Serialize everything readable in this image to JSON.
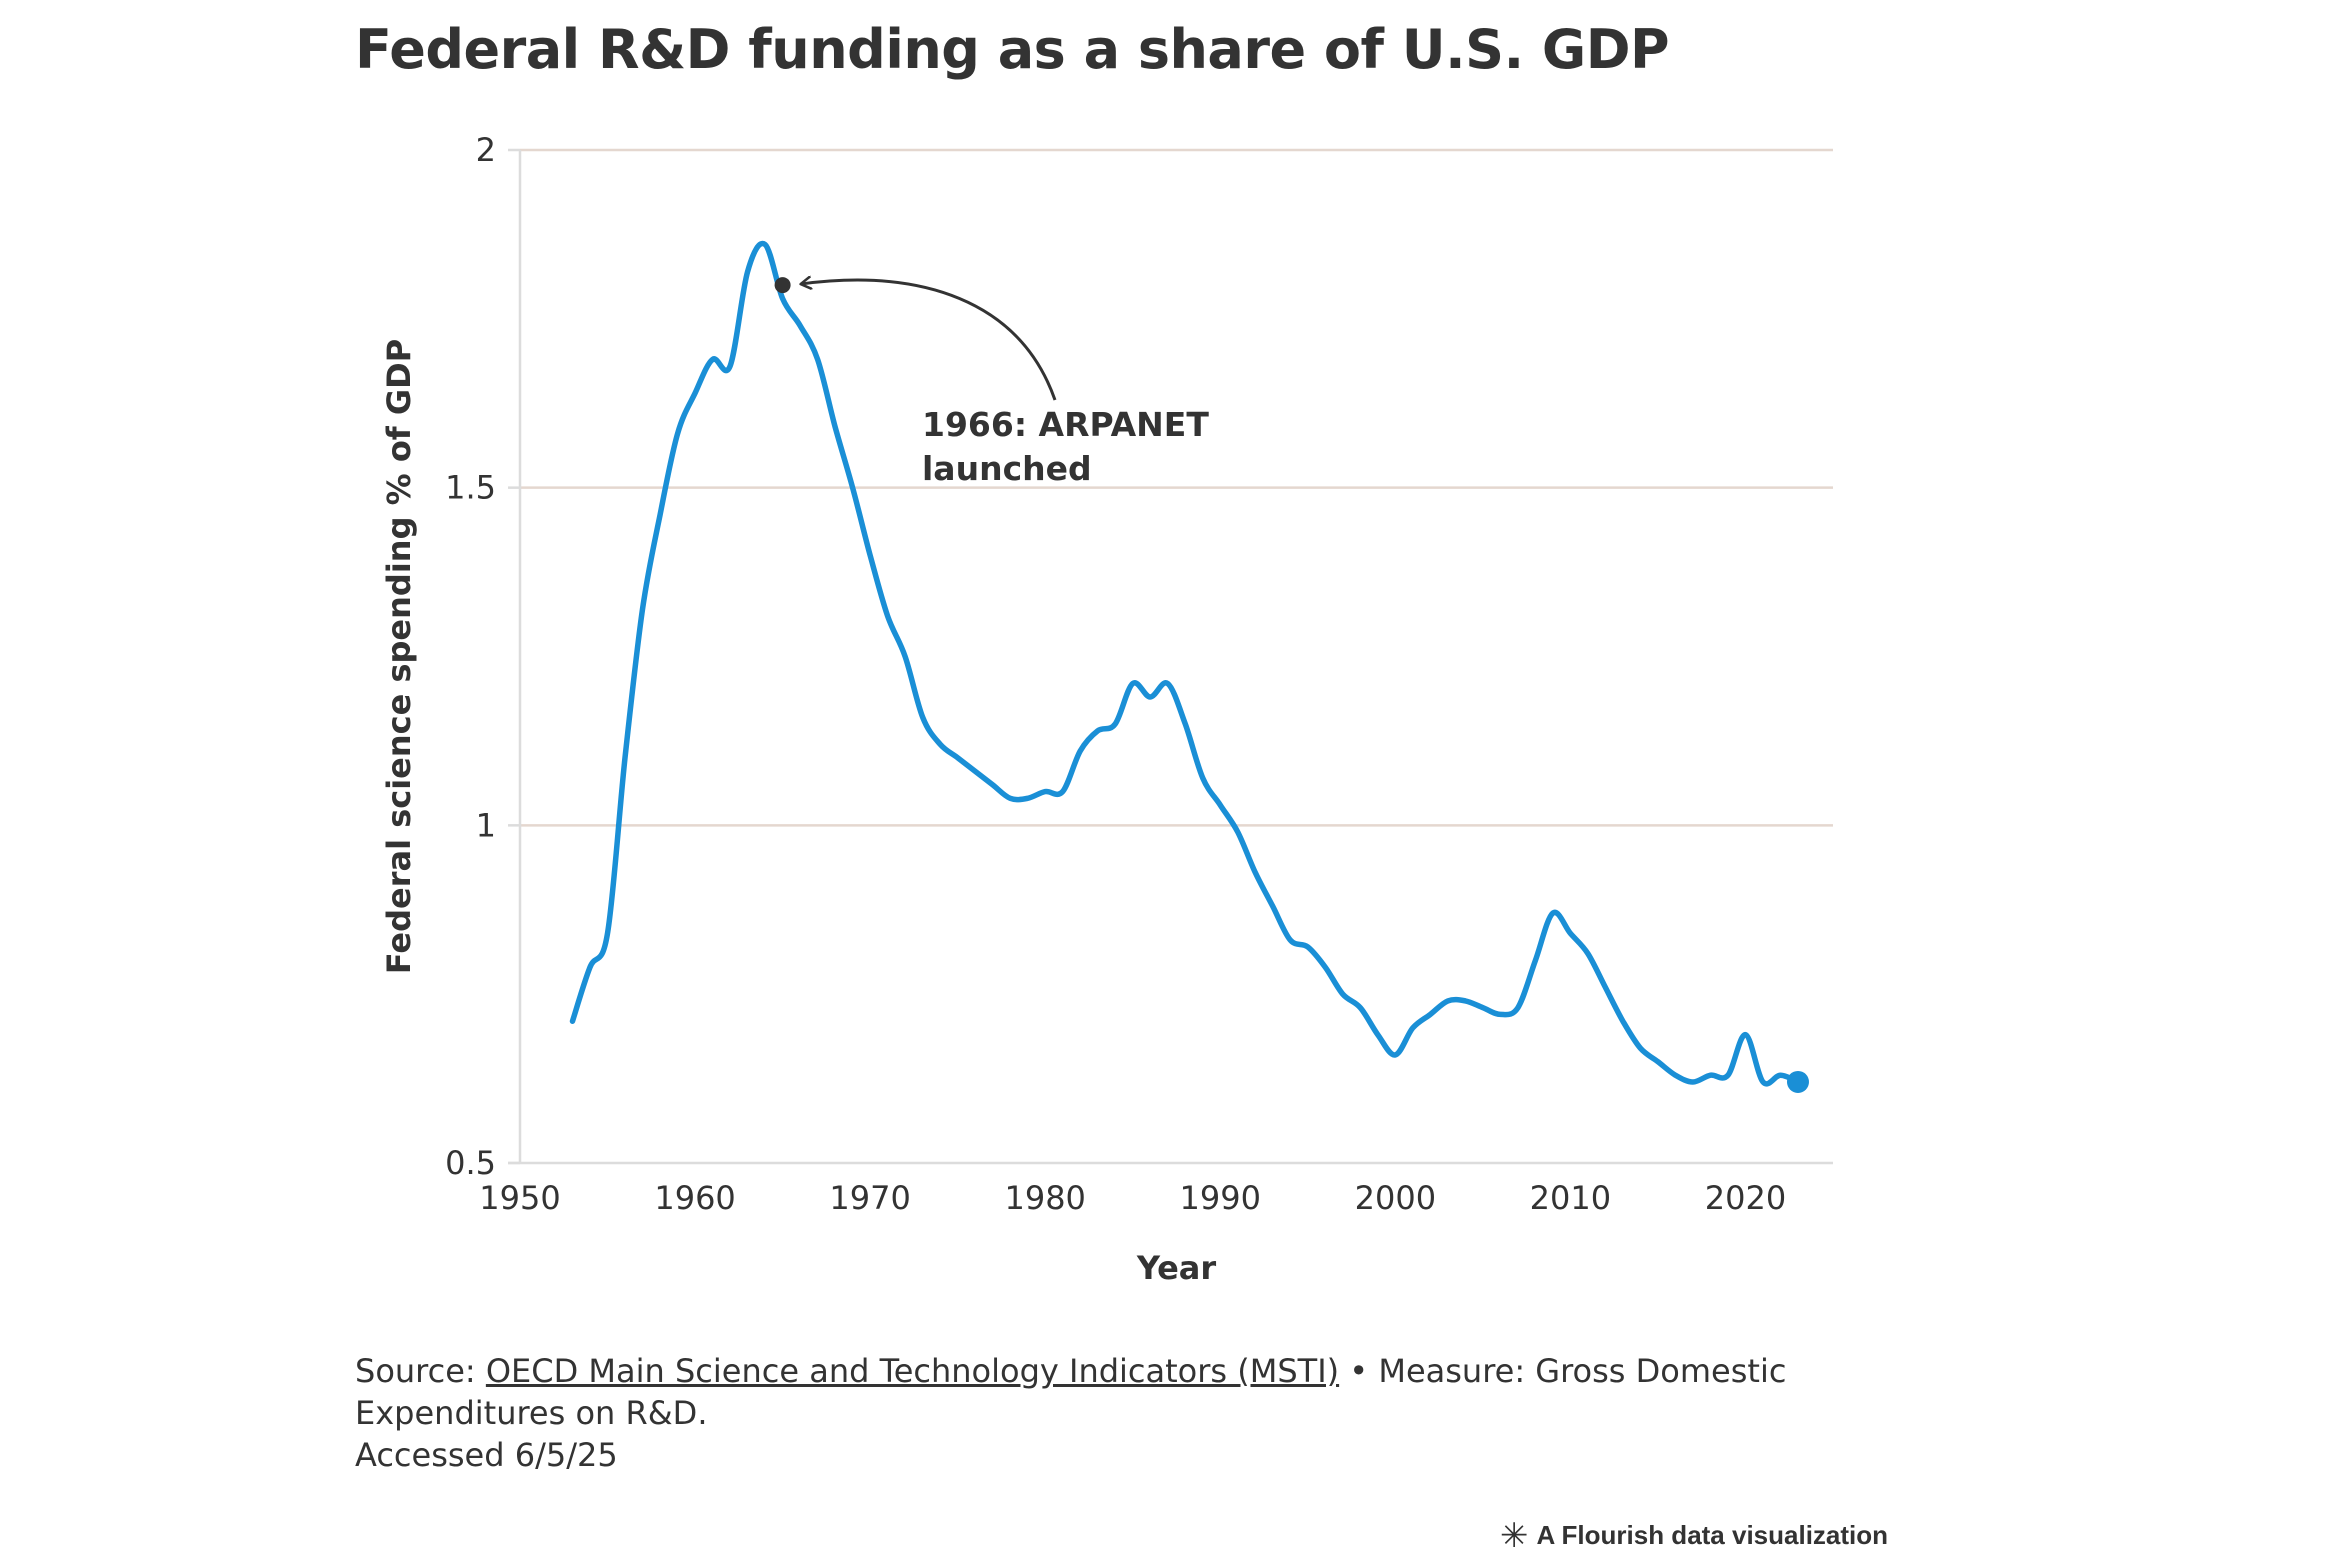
{
  "title": "Federal R&D funding as a share of U.S. GDP",
  "footer": {
    "source_prefix": "Source: ",
    "source_link": "OECD Main Science and Technology Indicators (MSTI)",
    "source_suffix": " • Measure: Gross Domestic Expenditures on R&D.",
    "accessed": "Accessed 6/5/25",
    "credit": "A Flourish data visualization",
    "credit_icon": "flourish-star-icon"
  },
  "colors": {
    "line": "#1a8fd6",
    "grid": "#e4d7cf",
    "axis": "#dcdcdc",
    "text": "#333333",
    "annotation": "#333333"
  },
  "chart_data": {
    "type": "line",
    "xlabel": "Year",
    "ylabel": "Federal science spending % of GDP",
    "xlim": [
      1950,
      2025
    ],
    "ylim": [
      0.5,
      2
    ],
    "xticks": [
      1950,
      1960,
      1970,
      1980,
      1990,
      2000,
      2010,
      2020
    ],
    "yticks": [
      0.5,
      1,
      1.5,
      2
    ],
    "ytick_labels": [
      "0.5",
      "1",
      "1.5",
      "2"
    ],
    "grid": true,
    "series": [
      {
        "x": [
          1953,
          1954,
          1955,
          1956,
          1957,
          1958,
          1959,
          1960,
          1961,
          1962,
          1963,
          1964,
          1965,
          1966,
          1967,
          1968,
          1969,
          1970,
          1971,
          1972,
          1973,
          1974,
          1975,
          1976,
          1977,
          1978,
          1979,
          1980,
          1981,
          1982,
          1983,
          1984,
          1985,
          1986,
          1987,
          1988,
          1989,
          1990,
          1991,
          1992,
          1993,
          1994,
          1995,
          1996,
          1997,
          1998,
          1999,
          2000,
          2001,
          2002,
          2003,
          2004,
          2005,
          2006,
          2007,
          2008,
          2009,
          2010,
          2011,
          2012,
          2013,
          2014,
          2015,
          2016,
          2017,
          2018,
          2019,
          2020,
          2021,
          2022,
          2023
        ],
        "y": [
          0.71,
          0.79,
          0.84,
          1.1,
          1.32,
          1.46,
          1.58,
          1.64,
          1.69,
          1.68,
          1.82,
          1.86,
          1.78,
          1.74,
          1.69,
          1.59,
          1.5,
          1.4,
          1.31,
          1.25,
          1.16,
          1.12,
          1.1,
          1.08,
          1.06,
          1.04,
          1.04,
          1.05,
          1.05,
          1.11,
          1.14,
          1.15,
          1.21,
          1.19,
          1.21,
          1.15,
          1.07,
          1.03,
          0.99,
          0.93,
          0.88,
          0.83,
          0.82,
          0.79,
          0.75,
          0.73,
          0.69,
          0.66,
          0.7,
          0.72,
          0.74,
          0.74,
          0.73,
          0.72,
          0.73,
          0.8,
          0.87,
          0.84,
          0.81,
          0.76,
          0.71,
          0.67,
          0.65,
          0.63,
          0.62,
          0.63,
          0.63,
          0.69,
          0.62,
          0.63,
          0.62
        ]
      }
    ],
    "annotation": {
      "text_line1": "1966: ARPANET",
      "text_line2": "launched",
      "x": 1965,
      "y": 1.8
    }
  }
}
